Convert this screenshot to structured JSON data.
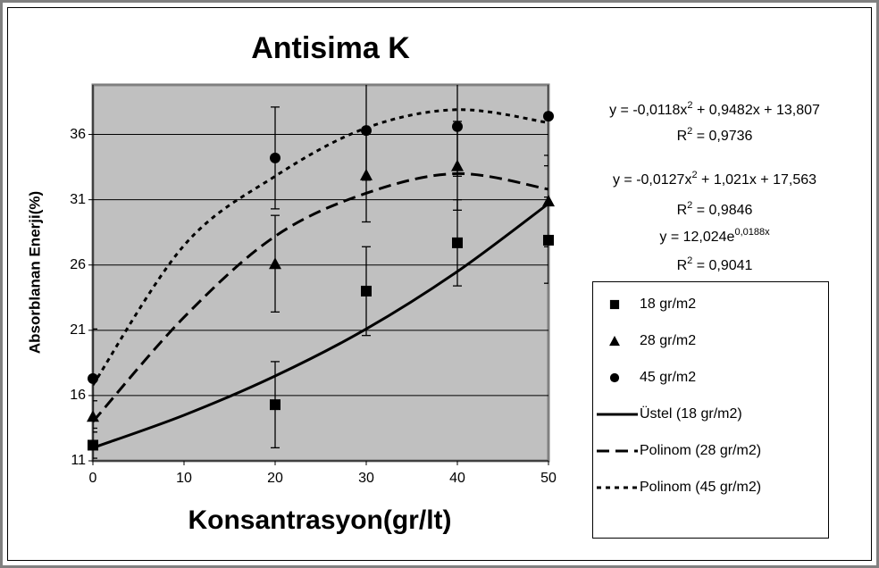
{
  "chart_data": {
    "type": "scatter",
    "title": "Antisima K",
    "x_label": "Konsantrasyon(gr/lt)",
    "y_label": "Absorblanan Enerji(%)",
    "xlim": [
      0,
      50
    ],
    "xticks": [
      0,
      10,
      20,
      30,
      40,
      50
    ],
    "ylim": [
      11,
      39.8
    ],
    "yticks": [
      11,
      16,
      21,
      26,
      31,
      36
    ],
    "grid": true,
    "series": [
      {
        "name": "18 gr/m2",
        "kind": "marker",
        "marker": "square",
        "color": "#000000",
        "x": [
          0,
          20,
          30,
          40,
          50
        ],
        "values": [
          12.2,
          15.3,
          24.0,
          27.7,
          27.9
        ],
        "errors": [
          1,
          3.3,
          3.4,
          3.3,
          3.3
        ]
      },
      {
        "name": "28 gr/m2",
        "kind": "marker",
        "marker": "triangle",
        "color": "#000000",
        "x": [
          0,
          20,
          30,
          40,
          50
        ],
        "values": [
          14.4,
          26.1,
          32.9,
          33.6,
          30.9
        ],
        "errors": [
          1.2,
          3.7,
          3.6,
          3.4,
          3.5
        ]
      },
      {
        "name": "45 gr/m2",
        "kind": "marker",
        "marker": "circle",
        "color": "#000000",
        "x": [
          0,
          20,
          30,
          40,
          50
        ],
        "values": [
          17.3,
          34.2,
          36.3,
          36.6,
          37.4
        ],
        "errors": [
          3.8,
          3.9,
          3.8,
          3.8,
          3.8
        ]
      },
      {
        "name": "Üstel (18 gr/m2)",
        "kind": "line",
        "dash": "solid",
        "color": "#000000",
        "x": [
          0,
          10,
          20,
          30,
          40,
          50
        ],
        "values": [
          12.0,
          14.5,
          17.5,
          21.1,
          25.5,
          30.7
        ]
      },
      {
        "name": "Polinom (28 gr/m2)",
        "kind": "line",
        "dash": "dash",
        "color": "#000000",
        "x": [
          0,
          10,
          20,
          30,
          40,
          50
        ],
        "values": [
          14.0,
          22.0,
          28.2,
          31.5,
          33.0,
          31.8
        ]
      },
      {
        "name": "Polinom (45 gr/m2)",
        "kind": "line",
        "dash": "dot",
        "color": "#000000",
        "x": [
          0,
          10,
          20,
          30,
          40,
          50
        ],
        "values": [
          16.8,
          27.5,
          32.8,
          36.5,
          37.9,
          36.9
        ]
      }
    ],
    "annotations": [
      [
        {
          "text": "y = -0,0118x"
        },
        {
          "sup": "2"
        },
        {
          "text": " + 0,9482x + 13,807"
        }
      ],
      [
        {
          "text": "R"
        },
        {
          "sup": "2"
        },
        {
          "text": " = 0,9736"
        }
      ],
      [
        {
          "text": "y = -0,0127x"
        },
        {
          "sup": "2"
        },
        {
          "text": " + 1,021x + 17,563"
        }
      ],
      [
        {
          "text": "R"
        },
        {
          "sup": "2"
        },
        {
          "text": " = 0,9846"
        }
      ],
      [
        {
          "text": "y = 12,024e"
        },
        {
          "sup": "0,0188x"
        }
      ],
      [
        {
          "text": "R"
        },
        {
          "sup": "2"
        },
        {
          "text": " = 0,9041"
        }
      ]
    ]
  }
}
